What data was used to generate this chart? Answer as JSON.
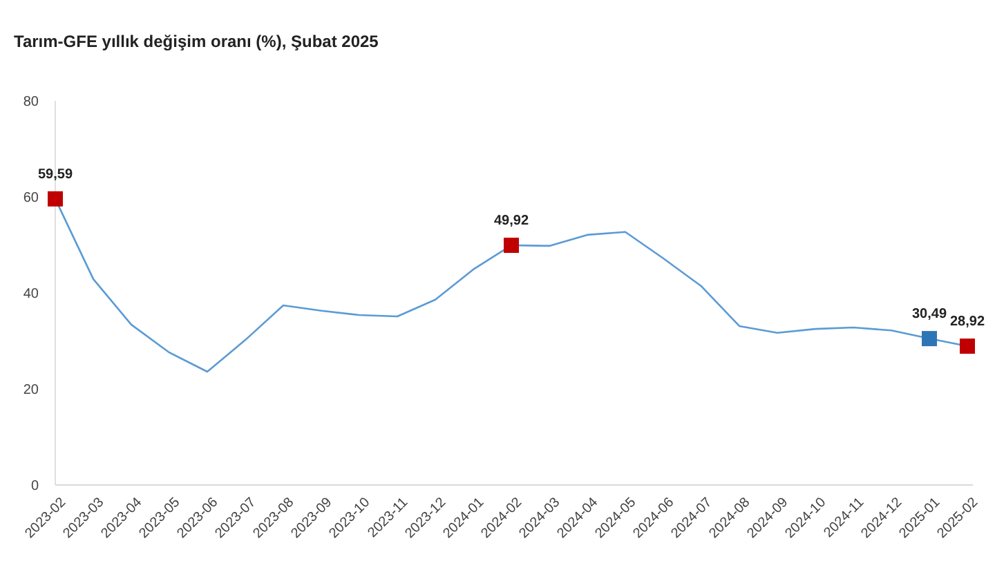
{
  "chart_data": {
    "type": "line",
    "title": "Tarım-GFE yıllık değişim oranı (%), Şubat 2025",
    "categories": [
      "2023-02",
      "2023-03",
      "2023-04",
      "2023-05",
      "2023-06",
      "2023-07",
      "2023-08",
      "2023-09",
      "2023-10",
      "2023-11",
      "2023-12",
      "2024-01",
      "2024-02",
      "2024-03",
      "2024-04",
      "2024-05",
      "2024-06",
      "2024-07",
      "2024-08",
      "2024-09",
      "2024-10",
      "2024-11",
      "2024-12",
      "2025-01",
      "2025-02"
    ],
    "series": [
      {
        "color": "#5b9bd5",
        "marker": "none",
        "values": [
          59.59,
          42.9,
          33.4,
          27.6,
          23.6,
          30.2,
          37.4,
          36.3,
          35.4,
          35.1,
          38.6,
          44.9,
          49.92,
          49.8,
          52.1,
          52.7,
          47.2,
          41.4,
          33.1,
          31.7,
          32.5,
          32.8,
          32.2,
          30.49,
          28.92
        ]
      },
      {
        "type": "scatter",
        "marker": "square",
        "values": [
          59.59,
          null,
          null,
          null,
          null,
          null,
          null,
          null,
          null,
          null,
          null,
          null,
          49.92,
          null,
          null,
          null,
          null,
          null,
          null,
          null,
          null,
          null,
          null,
          30.49,
          28.92
        ],
        "colors": [
          "#c00000",
          null,
          null,
          null,
          null,
          null,
          null,
          null,
          null,
          null,
          null,
          null,
          "#c00000",
          null,
          null,
          null,
          null,
          null,
          null,
          null,
          null,
          null,
          null,
          "#2e75b6",
          "#c00000"
        ],
        "value_labels": [
          "59,59",
          null,
          null,
          null,
          null,
          null,
          null,
          null,
          null,
          null,
          null,
          null,
          "49,92",
          null,
          null,
          null,
          null,
          null,
          null,
          null,
          null,
          null,
          null,
          "30,49",
          "28,92"
        ]
      }
    ],
    "ylim": [
      0,
      80
    ],
    "yticks": [
      0,
      20,
      40,
      60,
      80
    ],
    "grid": false
  }
}
